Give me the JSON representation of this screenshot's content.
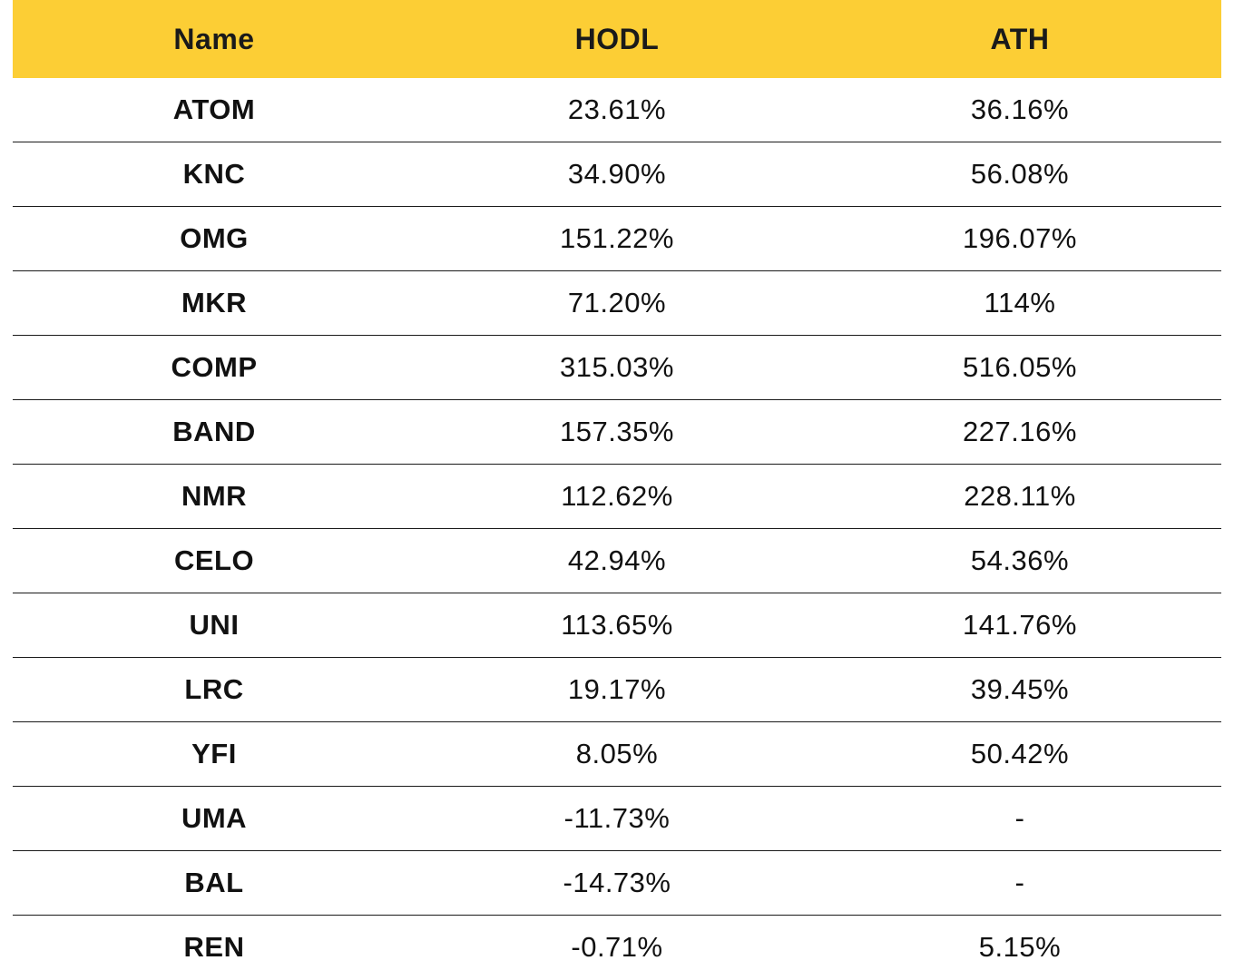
{
  "table": {
    "headers": [
      "Name",
      "HODL",
      "ATH"
    ],
    "rows": [
      {
        "name": "ATOM",
        "hodl": "23.61%",
        "ath": "36.16%"
      },
      {
        "name": "KNC",
        "hodl": "34.90%",
        "ath": "56.08%"
      },
      {
        "name": "OMG",
        "hodl": "151.22%",
        "ath": "196.07%"
      },
      {
        "name": "MKR",
        "hodl": "71.20%",
        "ath": "114%"
      },
      {
        "name": "COMP",
        "hodl": "315.03%",
        "ath": "516.05%"
      },
      {
        "name": "BAND",
        "hodl": "157.35%",
        "ath": "227.16%"
      },
      {
        "name": "NMR",
        "hodl": "112.62%",
        "ath": "228.11%"
      },
      {
        "name": "CELO",
        "hodl": "42.94%",
        "ath": "54.36%"
      },
      {
        "name": "UNI",
        "hodl": "113.65%",
        "ath": "141.76%"
      },
      {
        "name": "LRC",
        "hodl": "19.17%",
        "ath": "39.45%"
      },
      {
        "name": "YFI",
        "hodl": "8.05%",
        "ath": "50.42%"
      },
      {
        "name": "UMA",
        "hodl": "-11.73%",
        "ath": "-"
      },
      {
        "name": "BAL",
        "hodl": "-14.73%",
        "ath": "-"
      },
      {
        "name": "REN",
        "hodl": "-0.71%",
        "ath": "5.15%"
      }
    ]
  },
  "colors": {
    "header_background": "#fcce35",
    "row_divider": "#1a1a1a",
    "text": "#111111"
  }
}
